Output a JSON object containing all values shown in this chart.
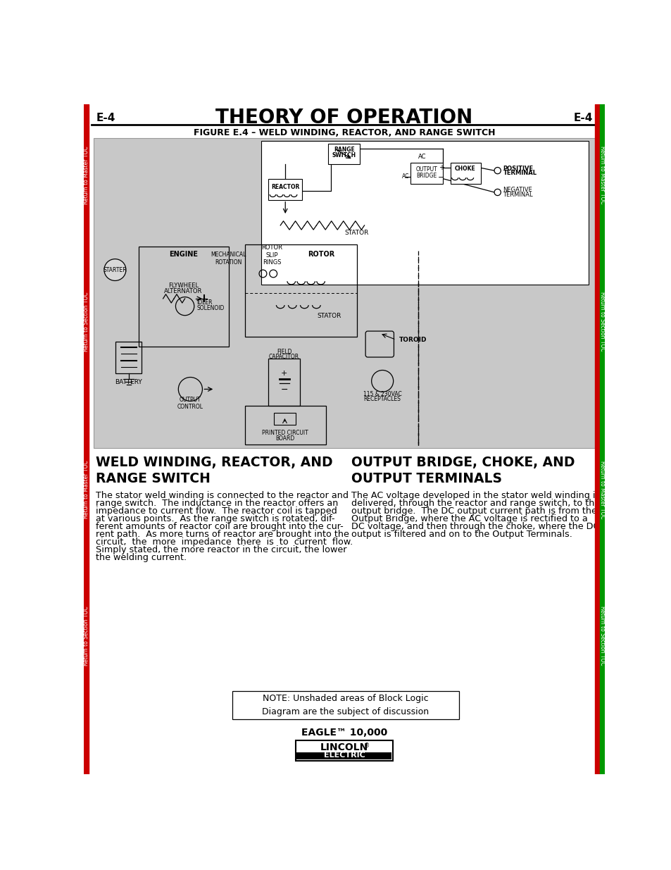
{
  "title": "THEORY OF OPERATION",
  "page_label": "E-4",
  "figure_caption": "FIGURE E.4 – WELD WINDING, REACTOR, AND RANGE SWITCH",
  "left_heading": "WELD WINDING, REACTOR, AND\nRANGE SWITCH",
  "right_heading": "OUTPUT BRIDGE, CHOKE, AND\nOUTPUT TERMINALS",
  "left_body_lines": [
    "The stator weld winding is connected to the reactor and",
    "range switch.  The inductance in the reactor offers an",
    "impedance to current flow.  The reactor coil is tapped",
    "at various points.  As the range switch is rotated, dif-",
    "ferent amounts of reactor coil are brought into the cur-",
    "rent path.  As more turns of reactor are brought into the",
    "circuit,  the  more  impedance  there  is  to  current  flow.",
    "Simply stated, the more reactor in the circuit, the lower",
    "the welding current."
  ],
  "right_body_lines": [
    "The AC voltage developed in the stator weld winding is",
    "delivered, through the reactor and range switch, to the",
    "output bridge.  The DC output current path is from the",
    "Output Bridge, where the AC voltage is rectified to a",
    "DC voltage, and then through the choke, where the DC",
    "output is filtered and on to the Output Terminals."
  ],
  "note_text": "NOTE: Unshaded areas of Block Logic\nDiagram are the subject of discussion",
  "footer_brand": "EAGLE™ 10,000",
  "bg_page": "#ffffff",
  "bg_diagram": "#c8c8c8",
  "bg_highlight": "#ffffff",
  "left_bar_color": "#cc0000",
  "right_bar_color": "#009900",
  "body_fontsize": 9.2,
  "heading_fontsize": 13.5,
  "title_fontsize": 20
}
